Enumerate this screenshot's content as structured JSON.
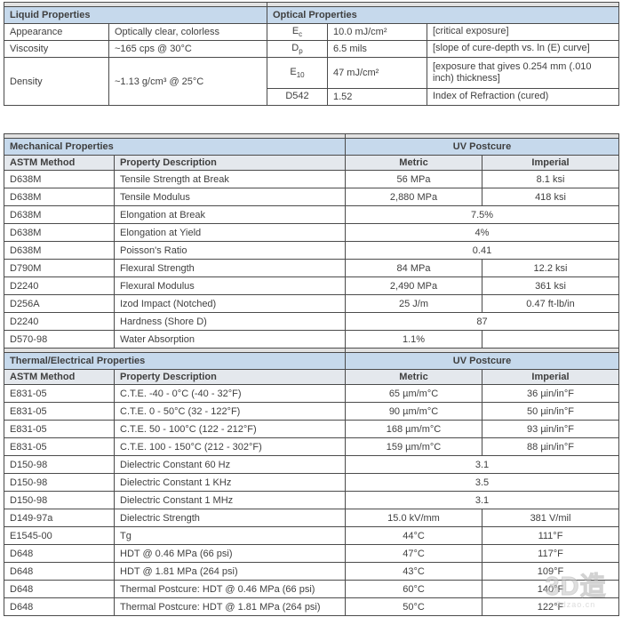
{
  "colors": {
    "section_header_bg": "#c6d9ec",
    "column_header_bg": "#e4e8ed",
    "spacer_bg": "#e2e2e2",
    "border": "#4b4b4b",
    "header_text": "#1d2c3d",
    "body_text": "#3f3f3f",
    "page_bg": "#ffffff"
  },
  "top_tables": {
    "liquid": {
      "title": "Liquid Properties",
      "rows": [
        {
          "property": "Appearance",
          "value": "Optically clear, colorless"
        },
        {
          "property": "Viscosity",
          "value": "~165 cps @ 30°C"
        },
        {
          "property": "Density",
          "value": "~1.13 g/cm³ @ 25°C"
        }
      ]
    },
    "optical": {
      "title": "Optical Properties",
      "rows": [
        {
          "symbol": "E",
          "subscript": "c",
          "value": "10.0 mJ/cm²",
          "description": "[critical exposure]"
        },
        {
          "symbol": "D",
          "subscript": "p",
          "value": "6.5 mils",
          "description": "[slope of cure-depth vs. ln (E) curve]"
        },
        {
          "symbol": "E",
          "subscript": "10",
          "value": "47 mJ/cm²",
          "description": "[exposure that gives 0.254 mm (.010 inch) thickness]"
        },
        {
          "symbol": "D542",
          "subscript": "",
          "value": "1.52",
          "description": "Index of Refraction (cured)"
        }
      ]
    }
  },
  "sections": [
    {
      "title": "Mechanical Properties",
      "postcure_header": "UV Postcure",
      "columns": [
        "ASTM Method",
        "Property Description",
        "Metric",
        "Imperial"
      ],
      "rows": [
        {
          "method": "D638M",
          "description": "Tensile Strength at Break",
          "metric": "56 MPa",
          "imperial": "8.1 ksi"
        },
        {
          "method": "D638M",
          "description": "Tensile Modulus",
          "metric": "2,880 MPa",
          "imperial": "418 ksi"
        },
        {
          "method": "D638M",
          "description": "Elongation at Break",
          "metric": "7.5%",
          "span": true
        },
        {
          "method": "D638M",
          "description": "Elongation at Yield",
          "metric": "4%",
          "span": true
        },
        {
          "method": "D638M",
          "description": "Poisson's Ratio",
          "metric": "0.41",
          "span": true
        },
        {
          "method": "D790M",
          "description": "Flexural Strength",
          "metric": "84 MPa",
          "imperial": "12.2 ksi"
        },
        {
          "method": "D2240",
          "description": "Flexural Modulus",
          "metric": "2,490 MPa",
          "imperial": "361 ksi"
        },
        {
          "method": "D256A",
          "description": "Izod Impact (Notched)",
          "metric": "25 J/m",
          "imperial": "0.47 ft-lb/in"
        },
        {
          "method": "D2240",
          "description": "Hardness (Shore D)",
          "metric": "87",
          "span": true
        },
        {
          "method": "D570-98",
          "description": "Water Absorption",
          "metric": "1.1%",
          "imperial": ""
        }
      ]
    },
    {
      "title": "Thermal/Electrical Properties",
      "postcure_header": "UV Postcure",
      "columns": [
        "ASTM Method",
        "Property Description",
        "Metric",
        "Imperial"
      ],
      "rows": [
        {
          "method": "E831-05",
          "description": "C.T.E. -40 - 0°C (-40 - 32°F)",
          "metric": "65 µm/m°C",
          "imperial": "36 µin/in°F"
        },
        {
          "method": "E831-05",
          "description": "C.T.E. 0 - 50°C (32 - 122°F)",
          "metric": "90 µm/m°C",
          "imperial": "50 µin/in°F"
        },
        {
          "method": "E831-05",
          "description": "C.T.E. 50 - 100°C (122 - 212°F)",
          "metric": "168 µm/m°C",
          "imperial": "93 µin/in°F"
        },
        {
          "method": "E831-05",
          "description": "C.T.E. 100 - 150°C (212 - 302°F)",
          "metric": "159 µm/m°C",
          "imperial": "88 µin/in°F"
        },
        {
          "method": "D150-98",
          "description": "Dielectric Constant 60 Hz",
          "metric": "3.1",
          "span": true
        },
        {
          "method": "D150-98",
          "description": "Dielectric Constant 1 KHz",
          "metric": "3.5",
          "span": true
        },
        {
          "method": "D150-98",
          "description": "Dielectric Constant 1 MHz",
          "metric": "3.1",
          "span": true
        },
        {
          "method": "D149-97a",
          "description": "Dielectric Strength",
          "metric": "15.0 kV/mm",
          "imperial": "381 V/mil"
        },
        {
          "method": "E1545-00",
          "description": "Tg",
          "metric": "44°C",
          "imperial": "111°F"
        },
        {
          "method": "D648",
          "description": "HDT @ 0.46 MPa (66 psi)",
          "metric": "47°C",
          "imperial": "117°F"
        },
        {
          "method": "D648",
          "description": "HDT @ 1.81 MPa (264 psi)",
          "metric": "43°C",
          "imperial": "109°F"
        },
        {
          "method": "D648",
          "description": "Thermal Postcure: HDT @ 0.46 MPa (66 psi)",
          "metric": "60°C",
          "imperial": "140°F"
        },
        {
          "method": "D648",
          "description": "Thermal Postcure: HDT @ 1.81 MPa (264 psi)",
          "metric": "50°C",
          "imperial": "122°F"
        }
      ]
    }
  ],
  "watermark": {
    "text": "3D造",
    "subtext": "3dzao.cn"
  }
}
